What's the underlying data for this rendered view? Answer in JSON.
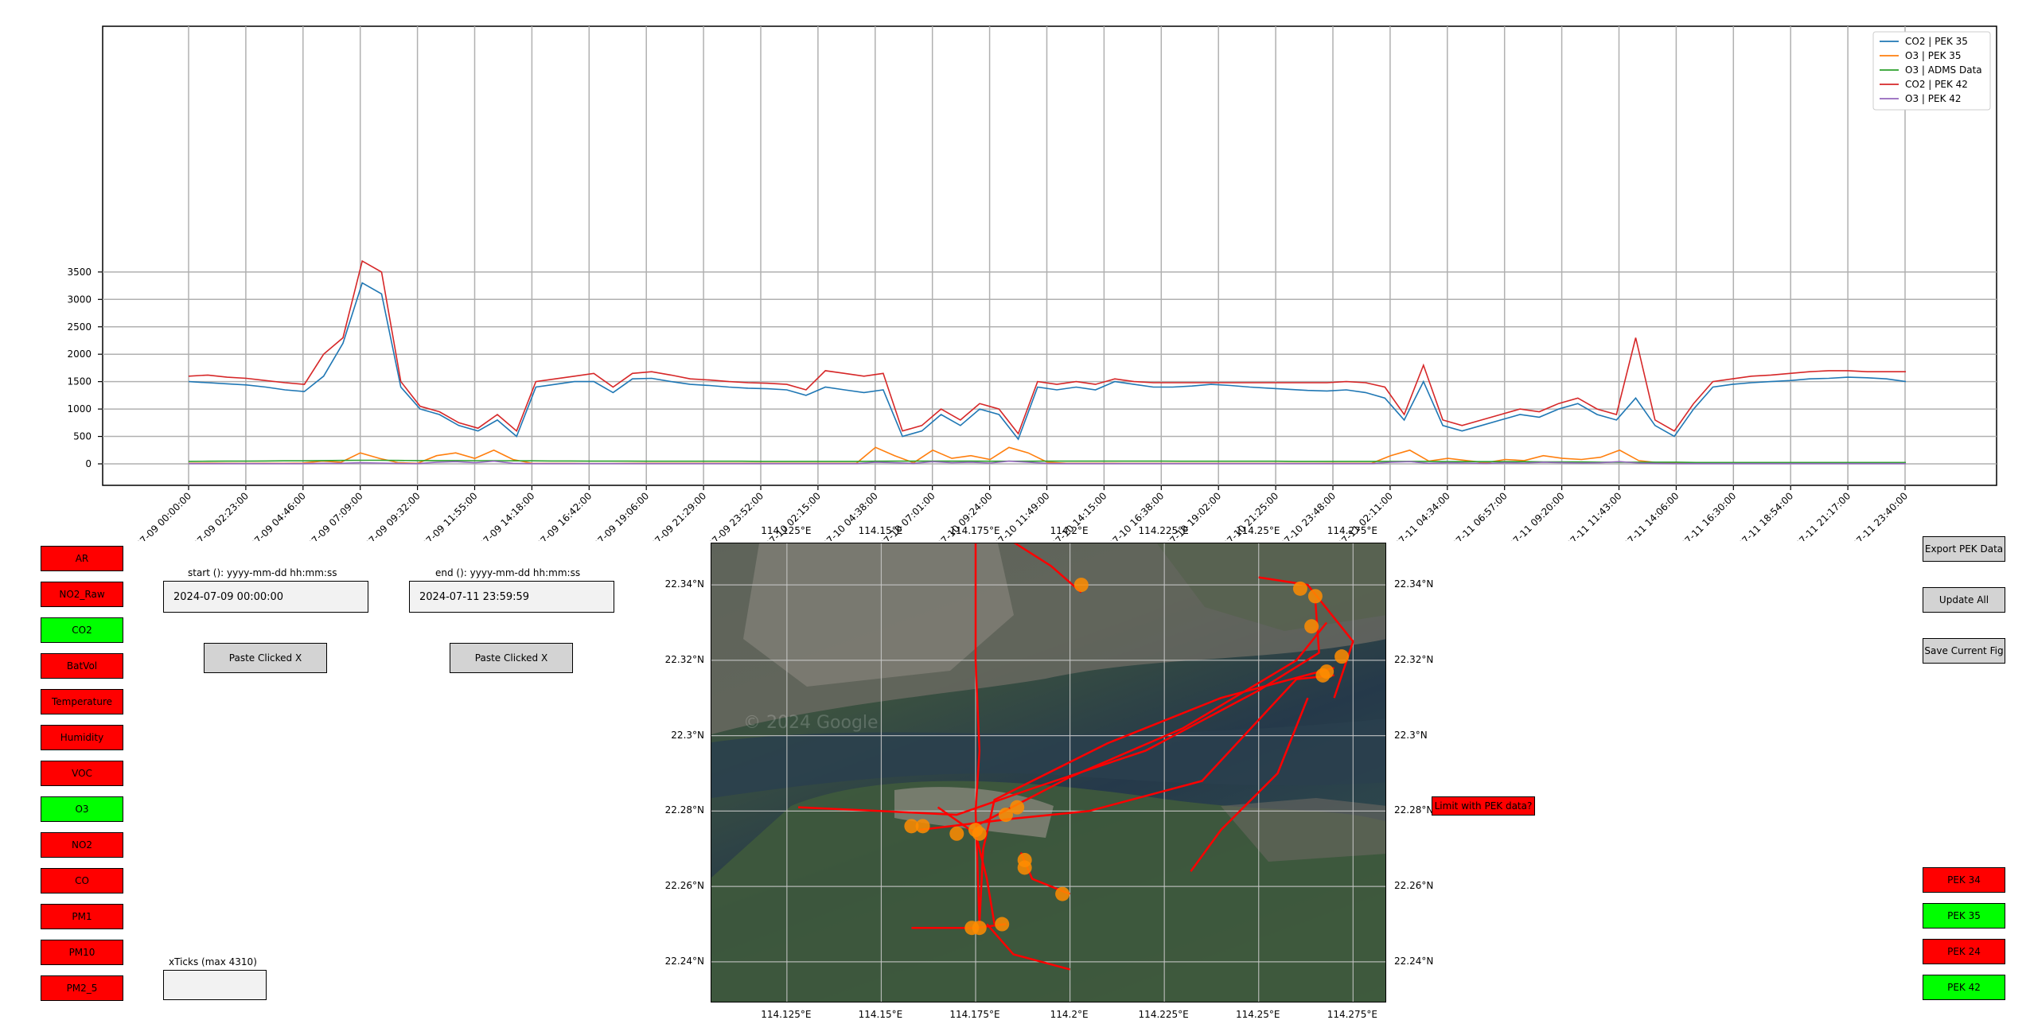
{
  "chart_data": {
    "type": "line",
    "x_ticks": [
      "2024-07-09 00:00:00",
      "2024-07-09 02:23:00",
      "2024-07-09 04:46:00",
      "2024-07-09 07:09:00",
      "2024-07-09 09:32:00",
      "2024-07-09 11:55:00",
      "2024-07-09 14:18:00",
      "2024-07-09 16:42:00",
      "2024-07-09 19:06:00",
      "2024-07-09 21:29:00",
      "2024-07-09 23:52:00",
      "2024-07-10 02:15:00",
      "2024-07-10 04:38:00",
      "2024-07-10 07:01:00",
      "2024-07-10 09:24:00",
      "2024-07-10 11:49:00",
      "2024-07-10 14:15:00",
      "2024-07-10 16:38:00",
      "2024-07-10 19:02:00",
      "2024-07-10 21:25:00",
      "2024-07-10 23:48:00",
      "2024-07-11 02:11:00",
      "2024-07-11 04:34:00",
      "2024-07-11 06:57:00",
      "2024-07-11 09:20:00",
      "2024-07-11 11:43:00",
      "2024-07-11 14:06:00",
      "2024-07-11 16:30:00",
      "2024-07-11 18:54:00",
      "2024-07-11 21:17:00",
      "2024-07-11 23:40:00"
    ],
    "y_ticks": [
      0,
      500,
      1000,
      1500,
      2000,
      2500,
      3000,
      3500
    ],
    "ylim": [
      -180,
      3980
    ],
    "grid": true,
    "legend_position": "top-right",
    "series": [
      {
        "name": "CO2 | PEK 35",
        "color": "#1f77b4",
        "values": [
          1500,
          1480,
          1460,
          1440,
          1400,
          1350,
          1320,
          1600,
          2200,
          3300,
          3100,
          1400,
          1000,
          900,
          700,
          600,
          800,
          500,
          1400,
          1450,
          1500,
          1500,
          1300,
          1550,
          1560,
          1500,
          1450,
          1430,
          1400,
          1380,
          1370,
          1350,
          1250,
          1400,
          1350,
          1300,
          1350,
          500,
          600,
          900,
          700,
          1000,
          900,
          450,
          1400,
          1350,
          1400,
          1350,
          1500,
          1450,
          1400,
          1400,
          1420,
          1450,
          1430,
          1400,
          1380,
          1360,
          1340,
          1330,
          1350,
          1300,
          1200,
          800,
          1500,
          700,
          600,
          700,
          800,
          900,
          850,
          1000,
          1100,
          900,
          800,
          1200,
          700,
          500,
          1000,
          1400,
          1450,
          1480,
          1500,
          1520,
          1550,
          1560,
          1580,
          1570,
          1550,
          1500
        ]
      },
      {
        "name": "O3 | PEK 35",
        "color": "#ff7f0e",
        "values": [
          10,
          12,
          10,
          8,
          10,
          10,
          15,
          50,
          30,
          200,
          100,
          20,
          10,
          150,
          200,
          100,
          250,
          80,
          10,
          8,
          8,
          5,
          5,
          8,
          10,
          10,
          10,
          10,
          10,
          10,
          10,
          10,
          10,
          10,
          10,
          10,
          300,
          150,
          20,
          250,
          100,
          150,
          80,
          300,
          200,
          30,
          10,
          10,
          10,
          8,
          8,
          8,
          8,
          8,
          8,
          8,
          8,
          8,
          8,
          8,
          10,
          10,
          10,
          150,
          250,
          50,
          100,
          60,
          20,
          80,
          60,
          150,
          100,
          80,
          120,
          250,
          60,
          20,
          10,
          8,
          8,
          8,
          8,
          8,
          8,
          8,
          8,
          8,
          8,
          8,
          8
        ]
      },
      {
        "name": "O3 | ADMS Data",
        "color": "#2ca02c",
        "values": [
          45,
          48,
          50,
          50,
          52,
          55,
          55,
          60,
          62,
          65,
          65,
          62,
          60,
          60,
          60,
          58,
          58,
          55,
          55,
          52,
          52,
          50,
          50,
          50,
          48,
          48,
          48,
          48,
          48,
          48,
          45,
          45,
          45,
          45,
          45,
          45,
          48,
          50,
          50,
          50,
          50,
          50,
          48,
          48,
          48,
          50,
          50,
          50,
          50,
          50,
          50,
          50,
          48,
          48,
          48,
          48,
          48,
          48,
          45,
          45,
          45,
          45,
          45,
          45,
          45,
          45,
          40,
          40,
          40,
          40,
          40,
          35,
          35,
          35,
          30,
          30,
          30,
          30,
          30,
          25,
          25,
          25,
          25,
          25,
          25,
          25,
          25,
          25,
          25,
          25,
          25
        ]
      },
      {
        "name": "CO2 | PEK 42",
        "color": "#d62728",
        "values": [
          1600,
          1620,
          1580,
          1560,
          1520,
          1480,
          1450,
          2000,
          2300,
          3700,
          3500,
          1500,
          1050,
          950,
          750,
          650,
          900,
          600,
          1500,
          1550,
          1600,
          1650,
          1400,
          1650,
          1680,
          1620,
          1550,
          1530,
          1500,
          1480,
          1470,
          1450,
          1350,
          1700,
          1650,
          1600,
          1650,
          600,
          700,
          1000,
          800,
          1100,
          1000,
          550,
          1500,
          1450,
          1500,
          1450,
          1550,
          1500,
          1480,
          1480,
          1480,
          1480,
          1480,
          1480,
          1480,
          1480,
          1480,
          1480,
          1500,
          1480,
          1400,
          900,
          1800,
          800,
          700,
          800,
          900,
          1000,
          950,
          1100,
          1200,
          1000,
          900,
          2300,
          800,
          600,
          1100,
          1500,
          1550,
          1600,
          1620,
          1650,
          1680,
          1700,
          1700,
          1680,
          1680,
          1680
        ]
      },
      {
        "name": "O3 | PEK 42",
        "color": "#9467bd",
        "values": [
          5,
          5,
          5,
          5,
          5,
          5,
          5,
          10,
          10,
          20,
          15,
          8,
          5,
          30,
          40,
          20,
          50,
          10,
          5,
          5,
          5,
          5,
          5,
          5,
          5,
          5,
          5,
          5,
          5,
          5,
          5,
          5,
          5,
          5,
          5,
          5,
          30,
          20,
          8,
          40,
          20,
          30,
          15,
          50,
          30,
          8,
          5,
          5,
          5,
          5,
          5,
          5,
          5,
          5,
          5,
          5,
          5,
          5,
          5,
          5,
          5,
          5,
          5,
          30,
          40,
          10,
          20,
          15,
          8,
          20,
          15,
          30,
          20,
          15,
          20,
          40,
          15,
          8,
          5,
          5,
          5,
          5,
          5,
          5,
          5,
          5,
          5,
          5,
          5,
          5,
          5
        ]
      }
    ]
  },
  "map": {
    "lon_labels": [
      "114.125°E",
      "114.15°E",
      "114.175°E",
      "114.2°E",
      "114.225°E",
      "114.25°E",
      "114.275°E"
    ],
    "lon_values": [
      114.125,
      114.15,
      114.175,
      114.2,
      114.225,
      114.25,
      114.275
    ],
    "lat_labels": [
      "22.34°N",
      "22.32°N",
      "22.3°N",
      "22.28°N",
      "22.26°N",
      "22.24°N"
    ],
    "lat_values": [
      22.34,
      22.32,
      22.3,
      22.28,
      22.26,
      22.24
    ],
    "lon_range": [
      114.105,
      114.284
    ],
    "lat_range": [
      22.229,
      22.351
    ],
    "watermark": "© 2024 Google",
    "track_color": "#ff0000",
    "marker_color": "#ff8c00",
    "tracks": [
      [
        [
          114.128,
          22.281
        ],
        [
          114.15,
          22.28
        ],
        [
          114.17,
          22.279
        ],
        [
          114.19,
          22.286
        ],
        [
          114.22,
          22.296
        ],
        [
          114.25,
          22.312
        ],
        [
          114.266,
          22.322
        ],
        [
          114.265,
          22.336
        ]
      ],
      [
        [
          114.175,
          22.276
        ],
        [
          114.2,
          22.289
        ],
        [
          114.23,
          22.302
        ],
        [
          114.26,
          22.32
        ],
        [
          114.268,
          22.33
        ]
      ],
      [
        [
          114.176,
          22.25
        ],
        [
          114.177,
          22.27
        ],
        [
          114.18,
          22.283
        ],
        [
          114.21,
          22.298
        ],
        [
          114.24,
          22.31
        ],
        [
          114.27,
          22.318
        ]
      ],
      [
        [
          114.175,
          22.352
        ],
        [
          114.175,
          22.32
        ],
        [
          114.176,
          22.296
        ],
        [
          114.175,
          22.28
        ],
        [
          114.176,
          22.25
        ]
      ],
      [
        [
          114.184,
          22.352
        ],
        [
          114.195,
          22.345
        ],
        [
          114.203,
          22.338
        ]
      ],
      [
        [
          114.16,
          22.275
        ],
        [
          114.185,
          22.278
        ],
        [
          114.205,
          22.28
        ],
        [
          114.235,
          22.288
        ],
        [
          114.26,
          22.315
        ],
        [
          114.27,
          22.316
        ]
      ],
      [
        [
          114.187,
          22.269
        ],
        [
          114.19,
          22.262
        ],
        [
          114.2,
          22.258
        ]
      ],
      [
        [
          114.178,
          22.25
        ],
        [
          114.185,
          22.242
        ],
        [
          114.2,
          22.238
        ]
      ],
      [
        [
          114.158,
          22.249
        ],
        [
          114.175,
          22.249
        ],
        [
          114.183,
          22.25
        ]
      ],
      [
        [
          114.232,
          22.264
        ],
        [
          114.24,
          22.275
        ],
        [
          114.255,
          22.29
        ],
        [
          114.263,
          22.31
        ]
      ],
      [
        [
          114.25,
          22.342
        ],
        [
          114.263,
          22.34
        ],
        [
          114.275,
          22.325
        ],
        [
          114.27,
          22.31
        ]
      ],
      [
        [
          114.165,
          22.281
        ],
        [
          114.175,
          22.274
        ],
        [
          114.178,
          22.262
        ],
        [
          114.18,
          22.25
        ]
      ]
    ],
    "markers": [
      [
        114.203,
        22.34
      ],
      [
        114.265,
        22.337
      ],
      [
        114.261,
        22.339
      ],
      [
        114.264,
        22.329
      ],
      [
        114.272,
        22.321
      ],
      [
        114.268,
        22.317
      ],
      [
        114.267,
        22.316
      ],
      [
        114.158,
        22.276
      ],
      [
        114.161,
        22.276
      ],
      [
        114.17,
        22.274
      ],
      [
        114.175,
        22.275
      ],
      [
        114.176,
        22.274
      ],
      [
        114.183,
        22.279
      ],
      [
        114.186,
        22.281
      ],
      [
        114.188,
        22.267
      ],
      [
        114.188,
        22.265
      ],
      [
        114.198,
        22.258
      ],
      [
        114.176,
        22.249
      ],
      [
        114.174,
        22.249
      ],
      [
        114.182,
        22.25
      ]
    ]
  },
  "controls": {
    "start_label": "start (): yyyy-mm-dd hh:mm:ss",
    "start_value": "2024-07-09 00:00:00",
    "end_label": "end (): yyyy-mm-dd hh:mm:ss",
    "end_value": "2024-07-11 23:59:59",
    "paste_label": "Paste Clicked X",
    "xticks_label": "xTicks (max 4310)",
    "xticks_value": "",
    "limit_label": "Limit with PEK data?",
    "export_label": "Export PEK Data",
    "update_label": "Update All",
    "save_label": "Save Current Fig"
  },
  "pollutants": [
    {
      "label": "AR",
      "color": "#ff0000"
    },
    {
      "label": "NO2_Raw",
      "color": "#ff0000"
    },
    {
      "label": "CO2",
      "color": "#00ff00"
    },
    {
      "label": "BatVol",
      "color": "#ff0000"
    },
    {
      "label": "Temperature",
      "color": "#ff0000"
    },
    {
      "label": "Humidity",
      "color": "#ff0000"
    },
    {
      "label": "VOC",
      "color": "#ff0000"
    },
    {
      "label": "O3",
      "color": "#00ff00"
    },
    {
      "label": "NO2",
      "color": "#ff0000"
    },
    {
      "label": "CO",
      "color": "#ff0000"
    },
    {
      "label": "PM1",
      "color": "#ff0000"
    },
    {
      "label": "PM10",
      "color": "#ff0000"
    },
    {
      "label": "PM2_5",
      "color": "#ff0000"
    }
  ],
  "stations": [
    {
      "label": "PEK 34",
      "color": "#ff0000"
    },
    {
      "label": "PEK 35",
      "color": "#00ff00"
    },
    {
      "label": "PEK 24",
      "color": "#ff0000"
    },
    {
      "label": "PEK 42",
      "color": "#00ff00"
    }
  ]
}
